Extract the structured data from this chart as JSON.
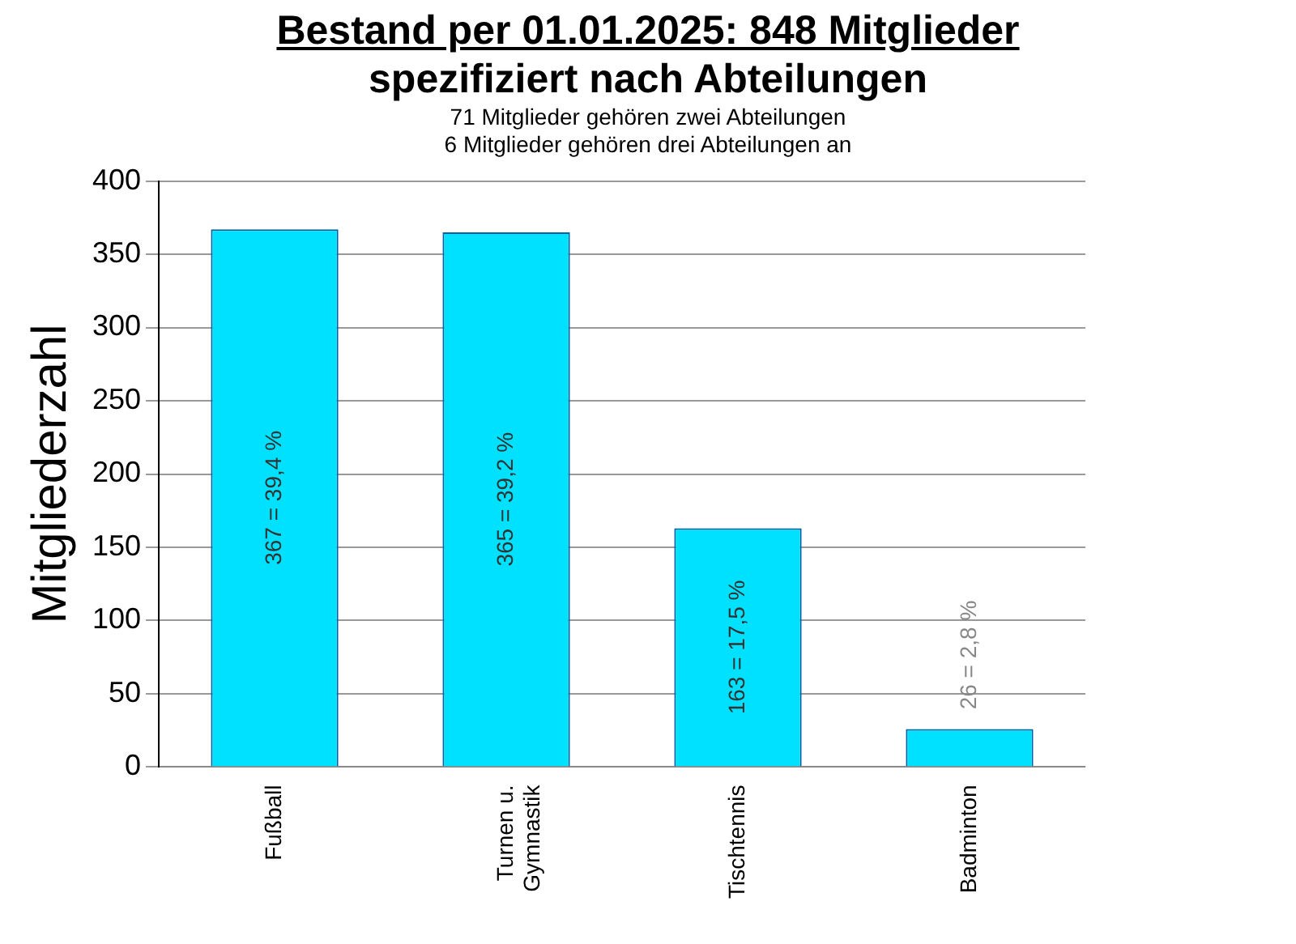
{
  "chart_data": {
    "type": "bar",
    "title": "Bestand per 01.01.2025: 848 Mitglieder",
    "subtitle": "spezifiziert nach Abteilungen",
    "annotations": [
      "71 Mitglieder gehören zwei Abteilungen",
      "6 Mitglieder gehören drei Abteilungen an"
    ],
    "ylabel": "Mitgliederzahl",
    "categories": [
      "Fußball",
      "Turnen u. Gymnastik",
      "Tischtennis",
      "Badminton"
    ],
    "values": [
      367,
      365,
      163,
      26
    ],
    "value_labels": [
      "367 = 39,4 %",
      "365 = 39,2 %",
      "163 = 17,5 %",
      "26 = 2,8 %"
    ],
    "color": "#00e0ff",
    "ylim": [
      0,
      400
    ],
    "yticks": [
      0,
      50,
      100,
      150,
      200,
      250,
      300,
      350,
      400
    ],
    "grid": "y",
    "legend": false
  }
}
